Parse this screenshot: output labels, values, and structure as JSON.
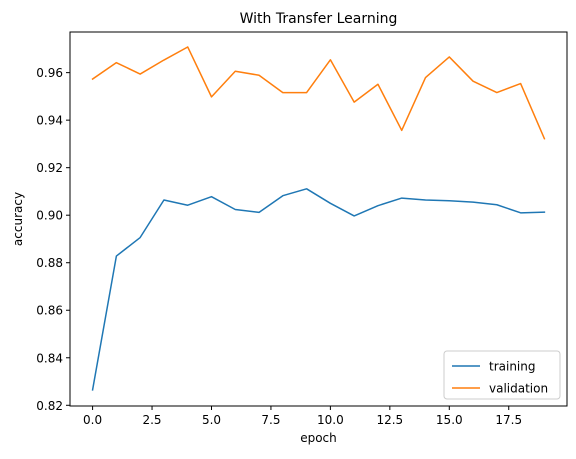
{
  "chart_data": {
    "type": "line",
    "title": "With Transfer Learning",
    "xlabel": "epoch",
    "ylabel": "accuracy",
    "xlim": [
      -0.95,
      19.95
    ],
    "ylim": [
      0.8197,
      0.9771
    ],
    "x_ticks": [
      0.0,
      2.5,
      5.0,
      7.5,
      10.0,
      12.5,
      15.0,
      17.5
    ],
    "x_tick_labels": [
      "0.0",
      "2.5",
      "5.0",
      "7.5",
      "10.0",
      "12.5",
      "15.0",
      "17.5"
    ],
    "y_ticks": [
      0.82,
      0.84,
      0.86,
      0.88,
      0.9,
      0.92,
      0.94,
      0.96
    ],
    "y_tick_labels": [
      "0.82",
      "0.84",
      "0.86",
      "0.88",
      "0.90",
      "0.92",
      "0.94",
      "0.96"
    ],
    "grid": false,
    "legend_position": "lower right",
    "x": [
      0,
      1,
      2,
      3,
      4,
      5,
      6,
      7,
      8,
      9,
      10,
      11,
      12,
      13,
      14,
      15,
      16,
      17,
      18,
      19
    ],
    "series": [
      {
        "name": "training",
        "color": "#1f77b4",
        "values": [
          0.8265,
          0.8828,
          0.8906,
          0.9064,
          0.9042,
          0.9078,
          0.9024,
          0.9012,
          0.9082,
          0.9111,
          0.905,
          0.8997,
          0.904,
          0.9072,
          0.9064,
          0.9061,
          0.9055,
          0.9044,
          0.901,
          0.9013
        ]
      },
      {
        "name": "validation",
        "color": "#ff7f0e",
        "values": [
          0.9573,
          0.9642,
          0.9594,
          0.9653,
          0.9708,
          0.9498,
          0.9606,
          0.9589,
          0.9516,
          0.9516,
          0.9654,
          0.9476,
          0.9551,
          0.9357,
          0.9579,
          0.9666,
          0.9564,
          0.9516,
          0.9554,
          0.9322
        ]
      }
    ]
  }
}
